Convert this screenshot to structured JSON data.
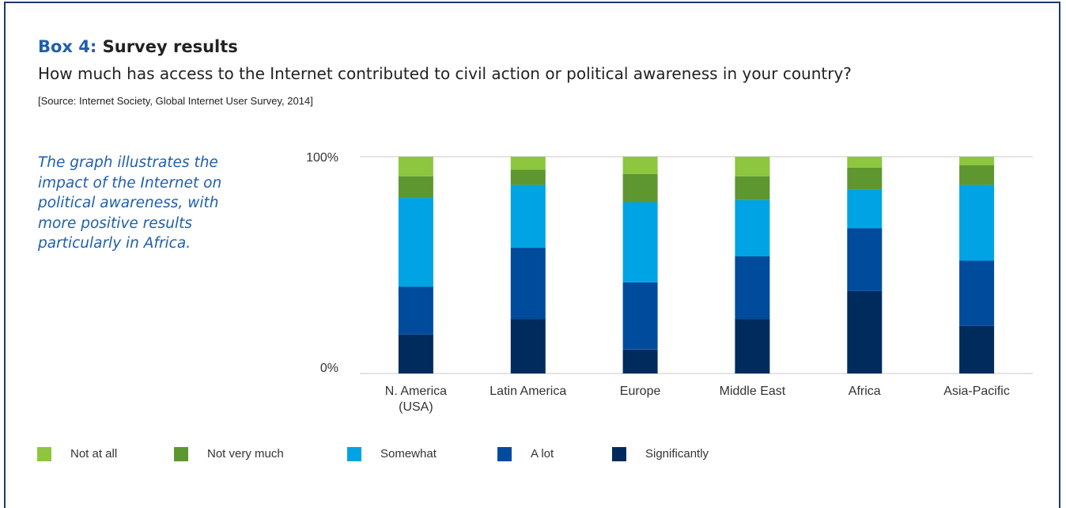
{
  "box": {
    "prefix": "Box 4:",
    "title": "Survey results",
    "question": "How much has access to the Internet contributed to civil action or political awareness in your country?",
    "source": "[Source: Internet Society, Global Internet User Survey, 2014]",
    "caption": "The graph illustrates the impact of the Internet on political awareness, with more positive results particularly in Africa."
  },
  "colors": {
    "Not at all": "#8dc63f",
    "Not very much": "#5e9730",
    "Somewhat": "#00a3e4",
    "A lot": "#004b9c",
    "Significantly": "#002b5c",
    "border": "#1e3a6e",
    "accent": "#1f5fae"
  },
  "chart_data": {
    "type": "bar",
    "stacked": true,
    "categories": [
      "N. America (USA)",
      "Latin America",
      "Europe",
      "Middle East",
      "Africa",
      "Asia-Pacific"
    ],
    "category_lines": [
      [
        "N. America",
        "(USA)"
      ],
      [
        "Latin America"
      ],
      [
        "Europe"
      ],
      [
        "Middle East"
      ],
      [
        "Africa"
      ],
      [
        "Asia-Pacific"
      ]
    ],
    "y_ticks": [
      "100%",
      "0%"
    ],
    "ylim": [
      0,
      100
    ],
    "series": [
      {
        "name": "Significantly",
        "values": [
          18,
          25,
          11,
          25,
          38,
          22
        ]
      },
      {
        "name": "A lot",
        "values": [
          22,
          33,
          31,
          29,
          29,
          30
        ]
      },
      {
        "name": "Somewhat",
        "values": [
          41,
          29,
          37,
          26,
          18,
          35
        ]
      },
      {
        "name": "Not very much",
        "values": [
          10,
          7,
          13,
          11,
          10,
          9
        ]
      },
      {
        "name": "Not at all",
        "values": [
          9,
          6,
          8,
          9,
          5,
          4
        ]
      }
    ],
    "legend": [
      "Not at all",
      "Not very much",
      "Somewhat",
      "A lot",
      "Significantly"
    ],
    "legend_position": "bottom-left"
  }
}
